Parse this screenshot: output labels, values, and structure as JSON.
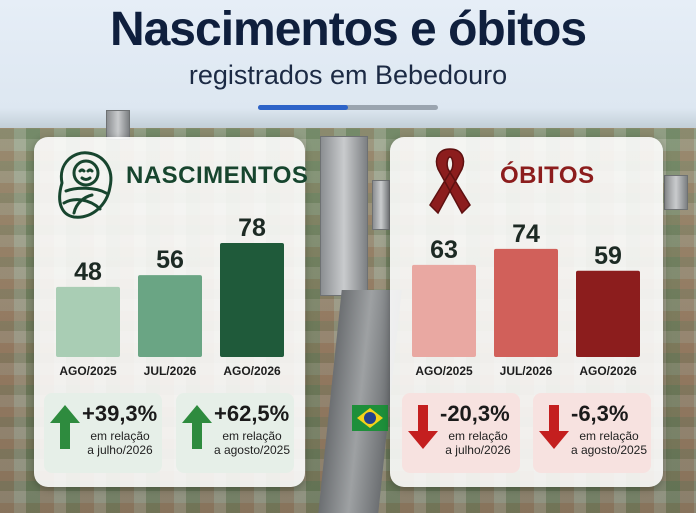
{
  "header": {
    "title": "Nascimentos e óbitos",
    "subtitle": "registrados em Bebedouro",
    "progress": 0.5
  },
  "colors": {
    "title": "#0f1f3d",
    "green_dark": "#1f5a3a",
    "green_mid": "#6aa584",
    "green_light": "#a9cdb4",
    "red_dark": "#8c1d1d",
    "red_mid": "#d1605a",
    "red_light": "#e9a8a2",
    "accent_blue": "#2d63c8"
  },
  "births": {
    "title": "NASCIMENTOS",
    "icon": "baby-icon",
    "stats": [
      {
        "percent": "+39,3%",
        "relation_line1": "em relação",
        "relation_line2": "a julho/2026",
        "direction": "up"
      },
      {
        "percent": "+62,5%",
        "relation_line1": "em relação",
        "relation_line2": "a agosto/2025",
        "direction": "up"
      }
    ]
  },
  "deaths": {
    "title": "ÓBITOS",
    "icon": "ribbon-icon",
    "stats": [
      {
        "percent": "-20,3%",
        "relation_line1": "em relação",
        "relation_line2": "a julho/2026",
        "direction": "down"
      },
      {
        "percent": "-6,3%",
        "relation_line1": "em relação",
        "relation_line2": "a agosto/2025",
        "direction": "down"
      }
    ]
  },
  "chart_data": [
    {
      "type": "bar",
      "title": "NASCIMENTOS",
      "categories": [
        "AGO/2025",
        "JUL/2026",
        "AGO/2026"
      ],
      "values": [
        48,
        56,
        78
      ],
      "ylim": [
        0,
        78
      ],
      "colors": [
        "#a9cdb4",
        "#6aa584",
        "#1f5a3a"
      ],
      "grid": false
    },
    {
      "type": "bar",
      "title": "ÓBITOS",
      "categories": [
        "AGO/2025",
        "JUL/2026",
        "AGO/2026"
      ],
      "values": [
        63,
        74,
        59
      ],
      "ylim": [
        0,
        78
      ],
      "colors": [
        "#e9a8a2",
        "#d1605a",
        "#8c1d1d"
      ],
      "grid": false
    }
  ]
}
